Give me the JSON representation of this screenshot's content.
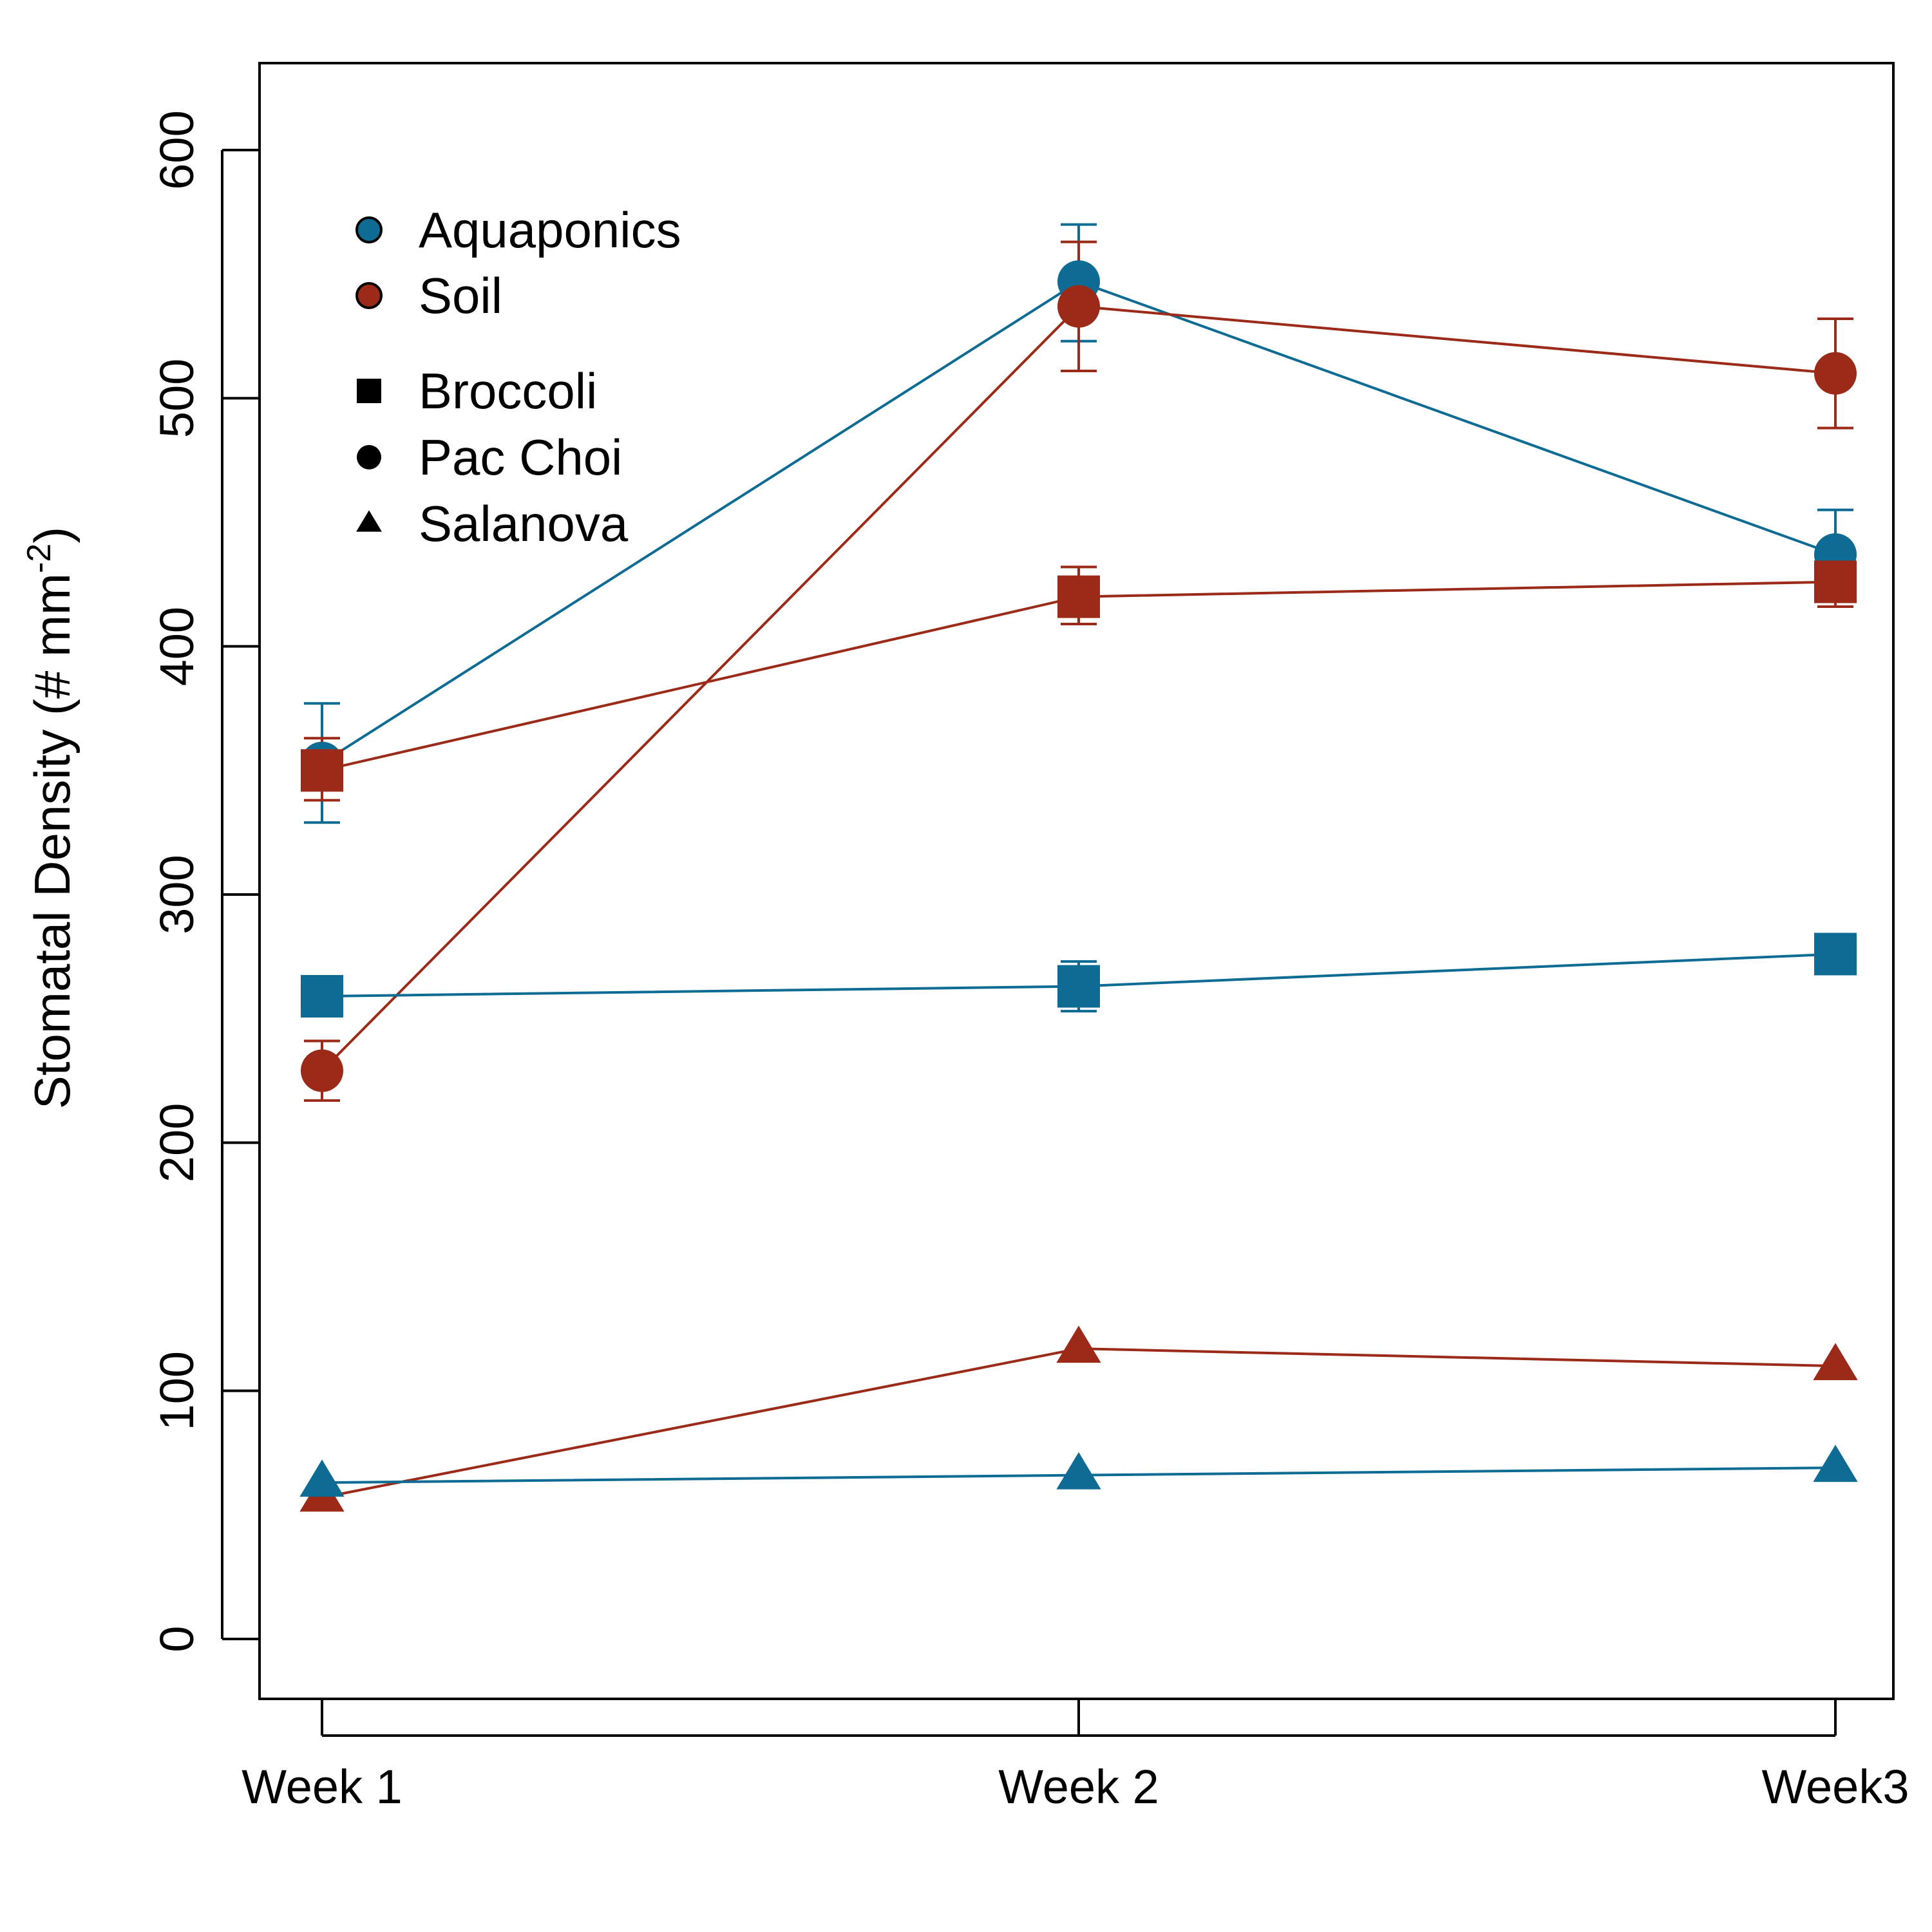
{
  "chart_data": {
    "type": "line",
    "title": "",
    "xlabel": "",
    "ylabel": {
      "main": "Stomatal Density  (# mm",
      "superscript": "-2",
      "close": ")"
    },
    "categories": [
      "Week 1",
      "Week 2",
      "Week3"
    ],
    "ylim": [
      -25,
      635
    ],
    "yticks": [
      0,
      100,
      200,
      300,
      400,
      500,
      600
    ],
    "grid": false,
    "legend_position": "top-left",
    "colors": {
      "Aquaponics": "#0e6b93",
      "Soil": "#9b2a18"
    },
    "legend": {
      "systems": [
        {
          "label": "Aquaponics",
          "color": "#0e6b93"
        },
        {
          "label": "Soil",
          "color": "#9b2a18"
        }
      ],
      "crops": [
        {
          "label": "Broccoli",
          "marker": "square"
        },
        {
          "label": "Pac Choi",
          "marker": "circle"
        },
        {
          "label": "Salanova",
          "marker": "triangle"
        }
      ]
    },
    "series": [
      {
        "system": "Aquaponics",
        "crop": "Pac Choi",
        "marker": "circle",
        "values": [
          353,
          547,
          437
        ],
        "err_low": [
          329,
          523,
          420
        ],
        "err_high": [
          377,
          570,
          455
        ]
      },
      {
        "system": "Soil",
        "crop": "Pac Choi",
        "marker": "circle",
        "values": [
          229,
          537,
          510
        ],
        "err_low": [
          217,
          511,
          488
        ],
        "err_high": [
          241,
          563,
          532
        ]
      },
      {
        "system": "Soil",
        "crop": "Broccoli",
        "marker": "square",
        "values": [
          350,
          420,
          426
        ],
        "err_low": [
          338,
          409,
          416
        ],
        "err_high": [
          363,
          432,
          436
        ]
      },
      {
        "system": "Aquaponics",
        "crop": "Broccoli",
        "marker": "square",
        "values": [
          259,
          263,
          276
        ],
        "err_low": [
          251,
          253,
          268
        ],
        "err_high": [
          267,
          273,
          284
        ]
      },
      {
        "system": "Soil",
        "crop": "Salanova",
        "marker": "triangle",
        "values": [
          57,
          117,
          110
        ],
        "err_low": [
          57,
          117,
          110
        ],
        "err_high": [
          57,
          117,
          110
        ]
      },
      {
        "system": "Aquaponics",
        "crop": "Salanova",
        "marker": "triangle",
        "values": [
          63,
          66,
          69
        ],
        "err_low": [
          63,
          66,
          69
        ],
        "err_high": [
          63,
          66,
          69
        ]
      }
    ]
  }
}
